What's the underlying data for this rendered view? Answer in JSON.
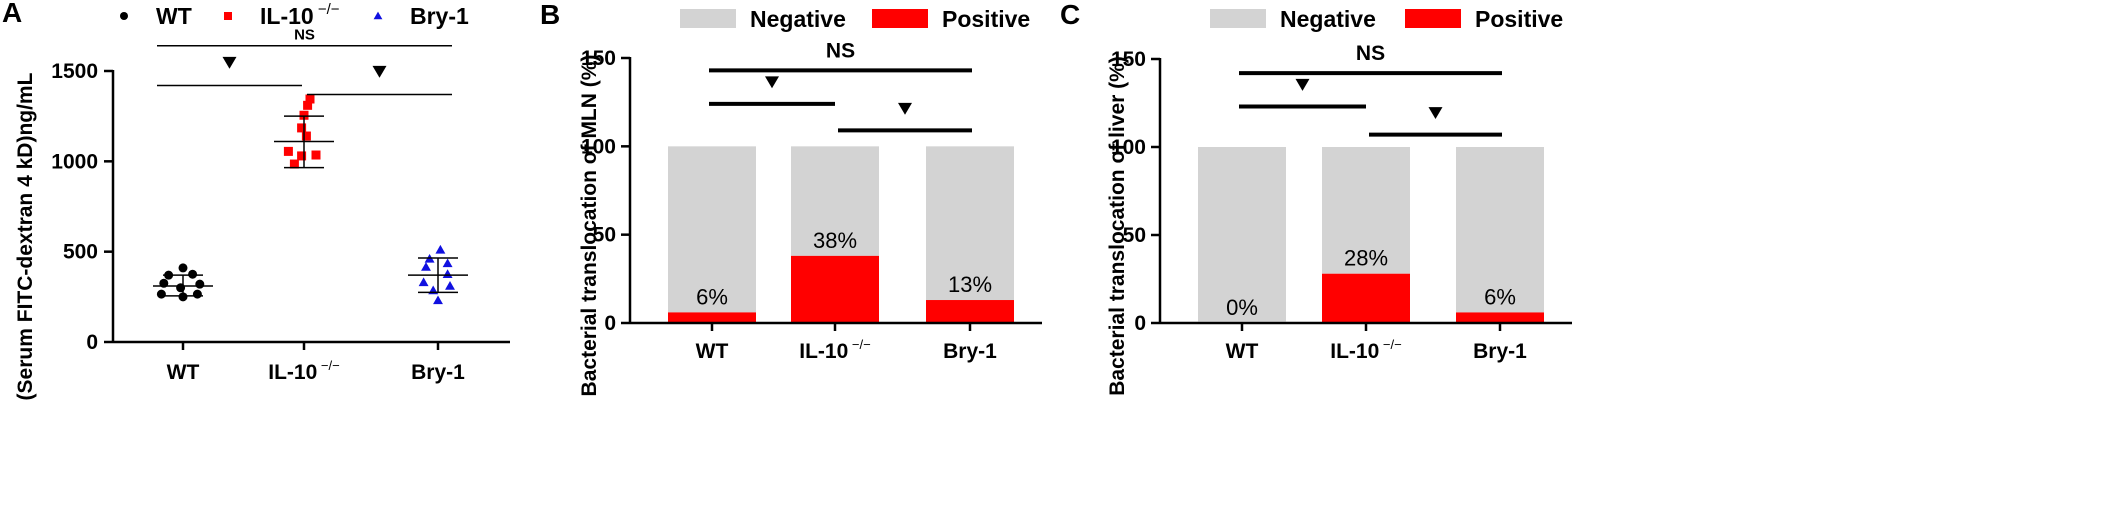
{
  "panels": [
    {
      "letter": "A",
      "chart_data": {
        "type": "scatter",
        "ylabel": "(Serum FITC-dextran 4 kD)ng/mL",
        "ylim": [
          0,
          1500
        ],
        "yticks": [
          0,
          500,
          1000,
          1500
        ],
        "categories": [
          {
            "base": "WT",
            "sup": ""
          },
          {
            "base": "IL-10",
            "sup": " −/−"
          },
          {
            "base": "Bry-1",
            "sup": ""
          }
        ],
        "legend": [
          {
            "label": "WT",
            "sup": "",
            "marker": "circle",
            "color": "#000000"
          },
          {
            "label": "IL-10",
            "sup": " −/−",
            "marker": "square",
            "color": "#ff0000"
          },
          {
            "label": "Bry-1",
            "sup": "",
            "marker": "triangle",
            "color": "#1010e0"
          }
        ],
        "series": [
          {
            "name": "WT",
            "marker": "circle",
            "color": "#000000",
            "points": [
              {
                "x": 0,
                "y": 410
              },
              {
                "x": -0.12,
                "y": 370
              },
              {
                "x": 0.08,
                "y": 375
              },
              {
                "x": -0.16,
                "y": 325
              },
              {
                "x": 0.14,
                "y": 320
              },
              {
                "x": -0.02,
                "y": 300
              },
              {
                "x": -0.18,
                "y": 265
              },
              {
                "x": 0.12,
                "y": 265
              },
              {
                "x": 0.0,
                "y": 250
              }
            ],
            "mean": 310,
            "sd_low": 255,
            "sd_high": 370
          },
          {
            "name": "IL-10 −/−",
            "marker": "square",
            "color": "#ff0000",
            "points": [
              {
                "x": 0.05,
                "y": 1345
              },
              {
                "x": 0.03,
                "y": 1310
              },
              {
                "x": 0.0,
                "y": 1255
              },
              {
                "x": -0.02,
                "y": 1185
              },
              {
                "x": 0.02,
                "y": 1140
              },
              {
                "x": -0.13,
                "y": 1055
              },
              {
                "x": -0.02,
                "y": 1030
              },
              {
                "x": 0.1,
                "y": 1035
              },
              {
                "x": -0.08,
                "y": 985
              }
            ],
            "mean": 1110,
            "sd_low": 965,
            "sd_high": 1250
          },
          {
            "name": "Bry-1",
            "marker": "triangle",
            "color": "#1010e0",
            "points": [
              {
                "x": 0.02,
                "y": 510
              },
              {
                "x": -0.07,
                "y": 460
              },
              {
                "x": 0.08,
                "y": 435
              },
              {
                "x": -0.1,
                "y": 415
              },
              {
                "x": 0.08,
                "y": 375
              },
              {
                "x": -0.12,
                "y": 330
              },
              {
                "x": 0.1,
                "y": 310
              },
              {
                "x": -0.04,
                "y": 285
              },
              {
                "x": 0.0,
                "y": 230
              }
            ],
            "mean": 370,
            "sd_low": 275,
            "sd_high": 465
          }
        ],
        "significance": [
          {
            "from": 0,
            "to": 2,
            "label": "NS",
            "level": 1640
          },
          {
            "from": 0,
            "to": 1,
            "label": "▼",
            "level": 1420
          },
          {
            "from": 1,
            "to": 2,
            "label": "▼",
            "level": 1370
          }
        ]
      }
    },
    {
      "letter": "B",
      "chart_data": {
        "type": "bar",
        "stacked": true,
        "ylabel": "Bacterial translocation of MLN (%)",
        "ylim": [
          0,
          150
        ],
        "yticks": [
          0,
          50,
          100,
          150
        ],
        "categories": [
          {
            "base": "WT",
            "sup": ""
          },
          {
            "base": "IL-10",
            "sup": " −/−"
          },
          {
            "base": "Bry-1",
            "sup": ""
          }
        ],
        "legend": [
          {
            "label": "Negative",
            "color": "#d3d3d3"
          },
          {
            "label": "Positive",
            "color": "#ff0000"
          }
        ],
        "series": [
          {
            "name": "Positive",
            "color": "#ff0000",
            "values": [
              6,
              38,
              13
            ]
          },
          {
            "name": "Negative",
            "color": "#d3d3d3",
            "values": [
              94,
              62,
              87
            ]
          }
        ],
        "data_labels": [
          "6%",
          "38%",
          "13%"
        ],
        "significance": [
          {
            "from": 0,
            "to": 2,
            "label": "NS",
            "level": 143
          },
          {
            "from": 0,
            "to": 1,
            "label": "▼",
            "level": 124
          },
          {
            "from": 1,
            "to": 2,
            "label": "▼",
            "level": 109
          }
        ]
      }
    },
    {
      "letter": "C",
      "chart_data": {
        "type": "bar",
        "stacked": true,
        "ylabel": "Bacterial translocation of liver (%)",
        "ylim": [
          0,
          150
        ],
        "yticks": [
          0,
          50,
          100,
          150
        ],
        "categories": [
          {
            "base": "WT",
            "sup": ""
          },
          {
            "base": "IL-10",
            "sup": " −/−"
          },
          {
            "base": "Bry-1",
            "sup": ""
          }
        ],
        "legend": [
          {
            "label": "Negative",
            "color": "#d3d3d3"
          },
          {
            "label": "Positive",
            "color": "#ff0000"
          }
        ],
        "series": [
          {
            "name": "Positive",
            "color": "#ff0000",
            "values": [
              0,
              28,
              6
            ]
          },
          {
            "name": "Negative",
            "color": "#d3d3d3",
            "values": [
              100,
              72,
              94
            ]
          }
        ],
        "data_labels": [
          "0%",
          "28%",
          "6%"
        ],
        "significance": [
          {
            "from": 0,
            "to": 2,
            "label": "NS",
            "level": 142
          },
          {
            "from": 0,
            "to": 1,
            "label": "▼",
            "level": 123
          },
          {
            "from": 1,
            "to": 2,
            "label": "▼",
            "level": 107
          }
        ]
      }
    }
  ]
}
